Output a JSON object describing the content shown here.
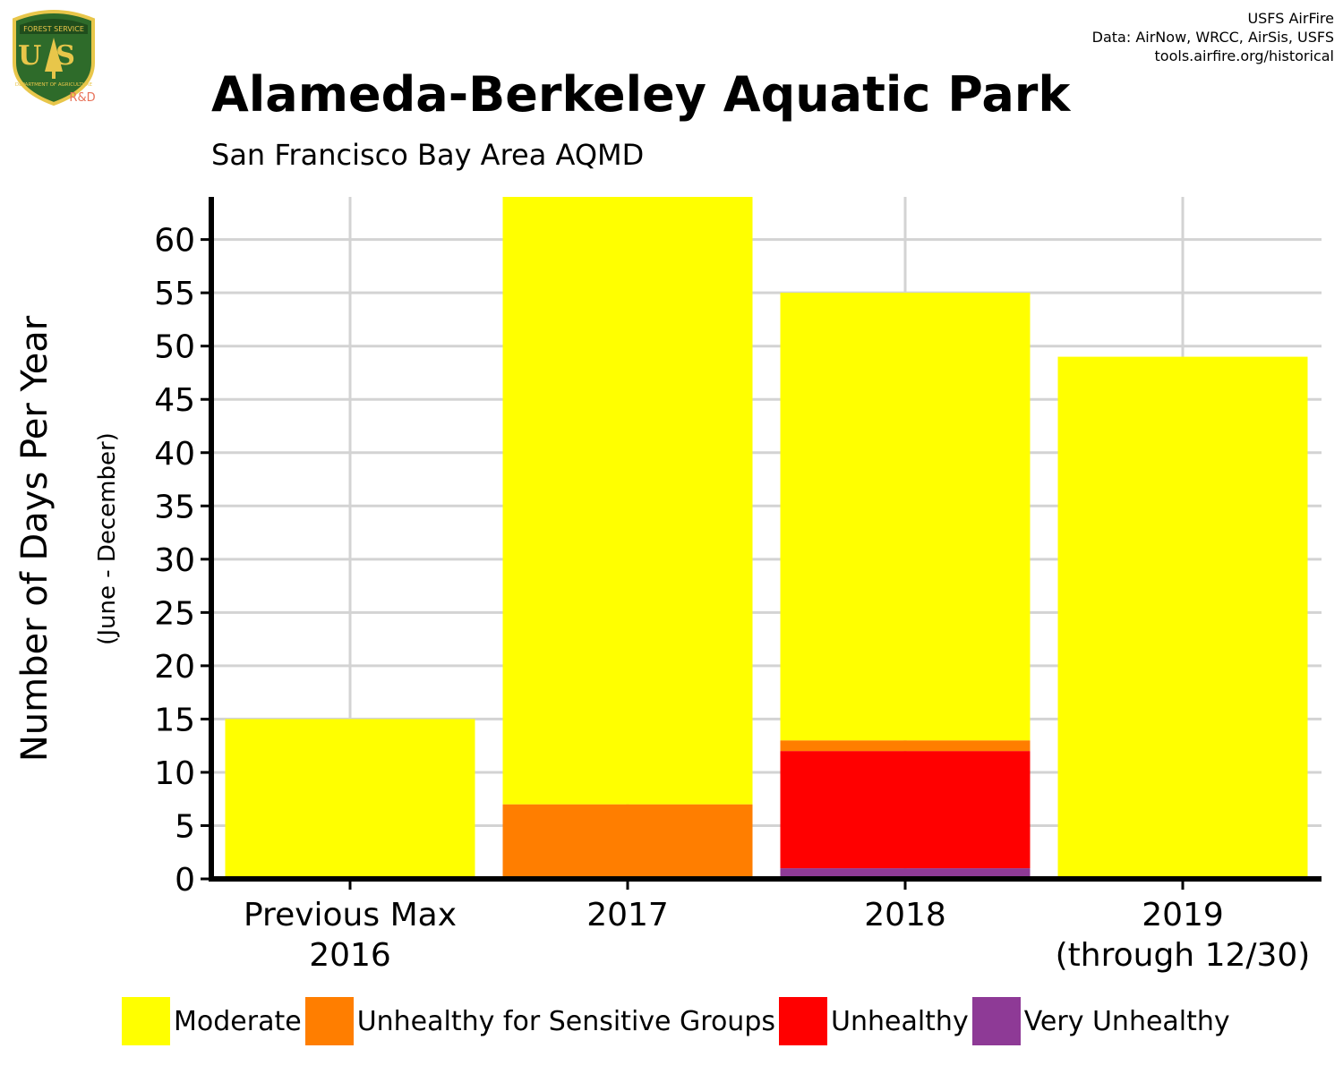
{
  "header": {
    "credits": [
      "USFS AirFire",
      "Data: AirNow, WRCC, AirSis, USFS",
      "tools.airfire.org/historical"
    ],
    "logo": {
      "top_text": "FOREST SERVICE",
      "letters": "US",
      "bottom_text": "DEPARTMENT OF AGRICULTURE",
      "rd": "R&D",
      "colors": {
        "shield": "#2e6b2a",
        "border": "#e8c64a",
        "rd": "#e8735a"
      }
    }
  },
  "chart_data": {
    "type": "bar",
    "stacked": true,
    "title": "Alameda-Berkeley Aquatic Park",
    "subtitle": "San Francisco Bay Area AQMD",
    "ylabel": "Number of Days Per Year",
    "ylabel_sub": "(June - December)",
    "xlabel": "",
    "ylim": [
      0,
      64
    ],
    "yticks": [
      0,
      5,
      10,
      15,
      20,
      25,
      30,
      35,
      40,
      45,
      50,
      55,
      60
    ],
    "grid": true,
    "legend_position": "bottom",
    "categories": [
      [
        "Previous Max",
        "2016"
      ],
      [
        "2017"
      ],
      [
        "2018"
      ],
      [
        "2019",
        "(through 12/30)"
      ]
    ],
    "series": [
      {
        "name": "Very Unhealthy",
        "color": "#8e3a96",
        "values": [
          0,
          0,
          1,
          0
        ]
      },
      {
        "name": "Unhealthy",
        "color": "#ff0000",
        "values": [
          0,
          0,
          11,
          0
        ]
      },
      {
        "name": "Unhealthy for Sensitive Groups",
        "color": "#ff7e00",
        "values": [
          0,
          7,
          1,
          0
        ]
      },
      {
        "name": "Moderate",
        "color": "#ffff00",
        "values": [
          15,
          57,
          42,
          49
        ]
      }
    ],
    "legend_order": [
      "Moderate",
      "Unhealthy for Sensitive Groups",
      "Unhealthy",
      "Very Unhealthy"
    ]
  }
}
